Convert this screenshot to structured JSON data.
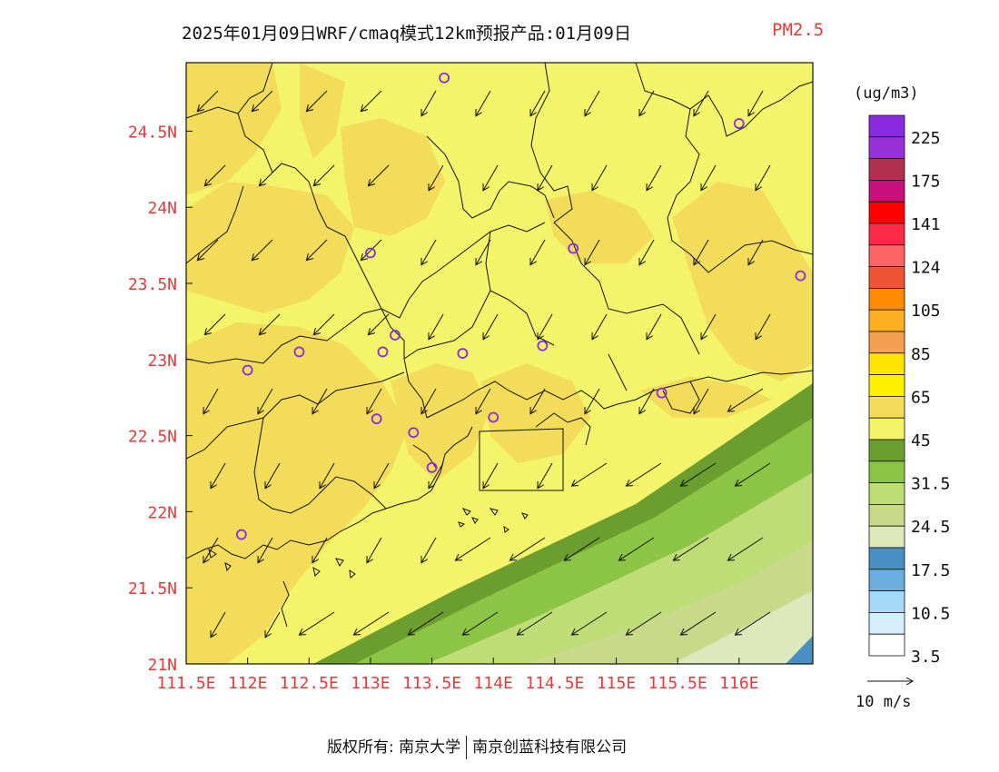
{
  "title": {
    "main": "2025年01月09日WRF/cmaq模式12km预报产品:01月09日",
    "pollutant": "PM2.5"
  },
  "map": {
    "lon_range": [
      111.5,
      116.6
    ],
    "lat_range": [
      21.0,
      24.95
    ],
    "lon_ticks": [
      111.5,
      112,
      112.5,
      113,
      113.5,
      114,
      114.5,
      115,
      115.5,
      116
    ],
    "lon_tick_labels": [
      "111.5E",
      "112E",
      "112.5E",
      "113E",
      "113.5E",
      "114E",
      "114.5E",
      "115E",
      "115.5E",
      "116E"
    ],
    "lat_ticks": [
      21,
      21.5,
      22,
      22.5,
      23,
      23.5,
      24,
      24.5
    ],
    "lat_tick_labels": [
      "21N",
      "21.5N",
      "22N",
      "22.5N",
      "23N",
      "23.5N",
      "24N",
      "24.5N"
    ],
    "tick_label_color": "#e33b3b"
  },
  "legend": {
    "unit": "(ug/m3)",
    "colors_top_to_bottom": [
      "#8a2be2",
      "#9b30d9",
      "#b0304f",
      "#c8107a",
      "#ff0000",
      "#ff2a4a",
      "#ff6464",
      "#ee5533",
      "#ff8c00",
      "#ffb020",
      "#f5a050",
      "#ffe600",
      "#fff000",
      "#f2dc5a",
      "#f4f46a",
      "#6b9e2e",
      "#8cc446",
      "#bedd76",
      "#c8d98a",
      "#dde8bc",
      "#4a8fc4",
      "#6aaede",
      "#a6d9f5",
      "#d6eefa",
      "#ffffff"
    ],
    "labels": [
      "225",
      "175",
      "141",
      "124",
      "105",
      "85",
      "65",
      "45",
      "31.5",
      "24.5",
      "17.5",
      "10.5",
      "3.5"
    ]
  },
  "wind_reference": {
    "label": "10 m/s"
  },
  "footer": {
    "left": "版权所有: 南京大学",
    "right": "南京创蓝科技有限公司"
  },
  "colors": {
    "fill_low": "#f4f46a",
    "fill_mid": "#f2dc5a",
    "dark_green": "#6b9e2e",
    "green": "#8cc446",
    "light_green": "#bedd76",
    "pale_green": "#dde8bc",
    "blue": "#4a8fc4",
    "station": "#8a2be2",
    "boundary": "#111111"
  },
  "stations": [
    {
      "lon": 113.6,
      "lat": 24.85
    },
    {
      "lon": 116.0,
      "lat": 24.55
    },
    {
      "lon": 113.0,
      "lat": 23.7
    },
    {
      "lon": 114.65,
      "lat": 23.73
    },
    {
      "lon": 116.5,
      "lat": 23.55
    },
    {
      "lon": 113.2,
      "lat": 23.16
    },
    {
      "lon": 112.42,
      "lat": 23.05
    },
    {
      "lon": 113.1,
      "lat": 23.05
    },
    {
      "lon": 113.75,
      "lat": 23.04
    },
    {
      "lon": 114.4,
      "lat": 23.09
    },
    {
      "lon": 112.0,
      "lat": 22.93
    },
    {
      "lon": 115.37,
      "lat": 22.78
    },
    {
      "lon": 113.05,
      "lat": 22.61
    },
    {
      "lon": 114.0,
      "lat": 22.62
    },
    {
      "lon": 113.35,
      "lat": 22.52
    },
    {
      "lon": 113.5,
      "lat": 22.29
    },
    {
      "lon": 111.95,
      "lat": 21.85
    }
  ]
}
